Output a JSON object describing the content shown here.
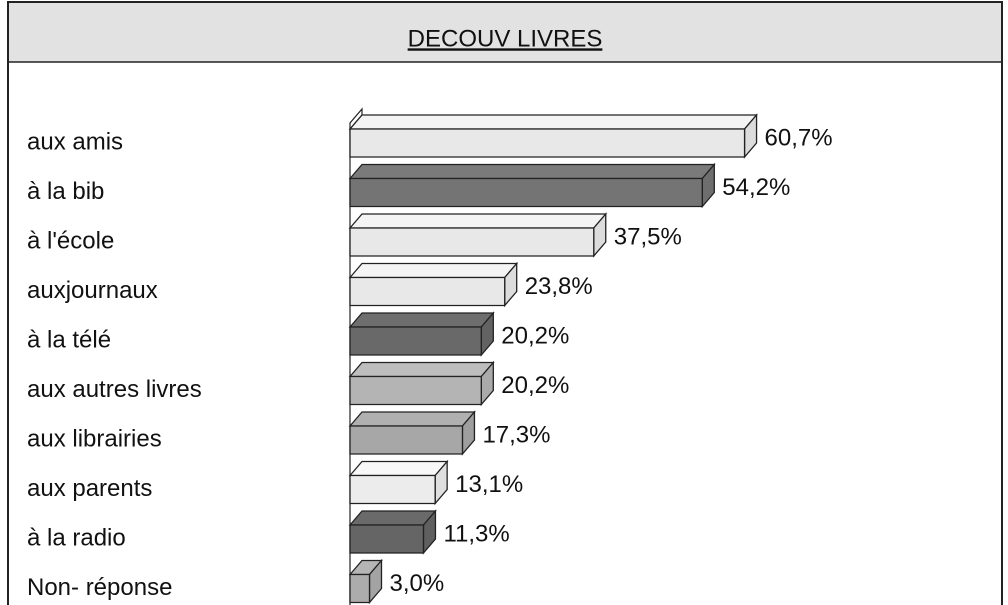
{
  "chart_data": {
    "type": "bar3d",
    "title": "DECOUV LIVRES",
    "categories": [
      "aux amis",
      "à la bib",
      "à l'école",
      "auxjournaux",
      "à la télé",
      "aux autres livres",
      "aux librairies",
      "aux parents",
      "à la radio",
      "Non- réponse"
    ],
    "values": [
      60.7,
      54.2,
      37.5,
      23.8,
      20.2,
      20.2,
      17.3,
      13.1,
      11.3,
      3.0
    ],
    "value_labels": [
      "60,7%",
      "54,2%",
      "37,5%",
      "23,8%",
      "20,2%",
      "20,2%",
      "17,3%",
      "13,1%",
      "11,3%",
      "3,0%"
    ],
    "colors": [
      "#f4f4f4",
      "#7a7a7a",
      "#f4f4f4",
      "#f4f4f4",
      "#6e6e6e",
      "#bdbdbd",
      "#b0b0b0",
      "#f8f8f8",
      "#6a6a6a",
      "#b5b5b5"
    ]
  }
}
